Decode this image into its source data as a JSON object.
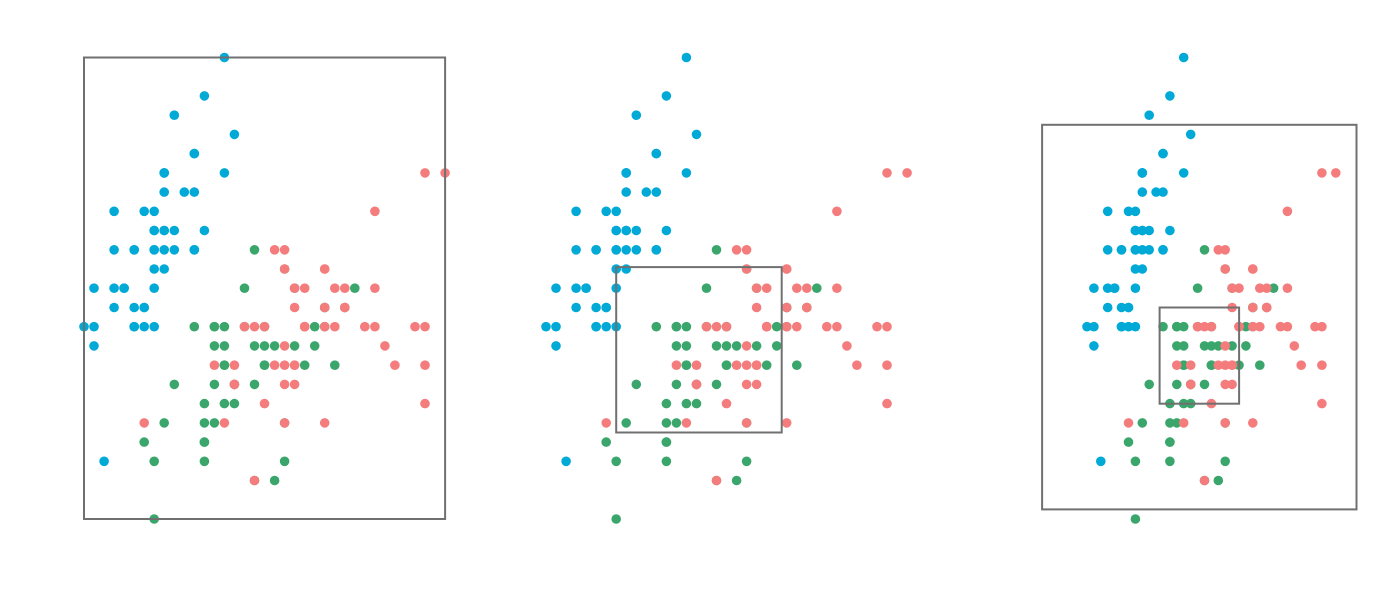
{
  "chart_data": {
    "type": "scatter",
    "title": "",
    "xlabel": "",
    "ylabel": "",
    "xlim": [
      4.0,
      8.1
    ],
    "ylim": [
      1.8,
      4.5
    ],
    "grid": false,
    "legend": "none",
    "colors": {
      "setosa": "#00a9d6",
      "versicolor": "#3aa66c",
      "virginica": "#f47c7c",
      "box": "#707070"
    },
    "series": [
      {
        "key": "setosa",
        "color": "#00a9d6",
        "points": [
          [
            5.1,
            3.5
          ],
          [
            4.9,
            3.0
          ],
          [
            4.7,
            3.2
          ],
          [
            4.6,
            3.1
          ],
          [
            5.0,
            3.6
          ],
          [
            5.4,
            3.9
          ],
          [
            4.6,
            3.4
          ],
          [
            5.0,
            3.4
          ],
          [
            4.4,
            2.9
          ],
          [
            4.9,
            3.1
          ],
          [
            5.4,
            3.7
          ],
          [
            4.8,
            3.4
          ],
          [
            4.8,
            3.0
          ],
          [
            4.3,
            3.0
          ],
          [
            5.8,
            4.0
          ],
          [
            5.7,
            4.4
          ],
          [
            5.4,
            3.9
          ],
          [
            5.1,
            3.5
          ],
          [
            5.7,
            3.8
          ],
          [
            5.1,
            3.8
          ],
          [
            5.4,
            3.4
          ],
          [
            5.1,
            3.7
          ],
          [
            4.6,
            3.6
          ],
          [
            5.1,
            3.3
          ],
          [
            4.8,
            3.4
          ],
          [
            5.0,
            3.0
          ],
          [
            5.0,
            3.4
          ],
          [
            5.2,
            3.5
          ],
          [
            5.2,
            3.4
          ],
          [
            4.7,
            3.2
          ],
          [
            4.8,
            3.1
          ],
          [
            5.4,
            3.4
          ],
          [
            5.2,
            4.1
          ],
          [
            5.5,
            4.2
          ],
          [
            4.9,
            3.1
          ],
          [
            5.0,
            3.2
          ],
          [
            5.5,
            3.5
          ],
          [
            4.9,
            3.6
          ],
          [
            4.4,
            3.0
          ],
          [
            5.1,
            3.4
          ],
          [
            5.0,
            3.5
          ],
          [
            4.5,
            2.3
          ],
          [
            4.4,
            3.2
          ],
          [
            5.0,
            3.5
          ],
          [
            5.1,
            3.8
          ],
          [
            4.8,
            3.0
          ],
          [
            5.1,
            3.8
          ],
          [
            4.6,
            3.2
          ],
          [
            5.3,
            3.7
          ],
          [
            5.0,
            3.3
          ]
        ]
      },
      {
        "key": "versicolor",
        "color": "#3aa66c",
        "points": [
          [
            7.0,
            3.2
          ],
          [
            6.4,
            3.2
          ],
          [
            6.9,
            3.1
          ],
          [
            5.5,
            2.3
          ],
          [
            6.5,
            2.8
          ],
          [
            5.7,
            2.8
          ],
          [
            6.3,
            3.3
          ],
          [
            4.9,
            2.4
          ],
          [
            6.6,
            2.9
          ],
          [
            5.2,
            2.7
          ],
          [
            5.0,
            2.0
          ],
          [
            5.9,
            3.0
          ],
          [
            6.0,
            2.2
          ],
          [
            6.1,
            2.9
          ],
          [
            5.6,
            2.9
          ],
          [
            6.7,
            3.1
          ],
          [
            5.6,
            3.0
          ],
          [
            5.8,
            2.7
          ],
          [
            6.2,
            2.2
          ],
          [
            5.6,
            2.5
          ],
          [
            5.9,
            3.2
          ],
          [
            6.1,
            2.8
          ],
          [
            6.3,
            2.5
          ],
          [
            6.1,
            2.8
          ],
          [
            6.4,
            2.9
          ],
          [
            6.6,
            3.0
          ],
          [
            6.8,
            2.8
          ],
          [
            6.7,
            3.0
          ],
          [
            6.0,
            2.9
          ],
          [
            5.7,
            2.6
          ],
          [
            5.5,
            2.4
          ],
          [
            5.5,
            2.4
          ],
          [
            5.8,
            2.7
          ],
          [
            6.0,
            2.7
          ],
          [
            5.4,
            3.0
          ],
          [
            6.0,
            3.4
          ],
          [
            6.7,
            3.1
          ],
          [
            6.3,
            2.3
          ],
          [
            5.6,
            3.0
          ],
          [
            5.5,
            2.5
          ],
          [
            5.5,
            2.6
          ],
          [
            6.1,
            3.0
          ],
          [
            5.8,
            2.6
          ],
          [
            5.0,
            2.3
          ],
          [
            5.6,
            2.7
          ],
          [
            5.7,
            3.0
          ],
          [
            5.7,
            2.9
          ],
          [
            6.2,
            2.9
          ],
          [
            5.1,
            2.5
          ],
          [
            5.7,
            2.8
          ]
        ]
      },
      {
        "key": "virginica",
        "color": "#f47c7c",
        "points": [
          [
            6.3,
            3.3
          ],
          [
            5.8,
            2.7
          ],
          [
            7.1,
            3.0
          ],
          [
            6.3,
            2.9
          ],
          [
            6.5,
            3.0
          ],
          [
            7.6,
            3.0
          ],
          [
            4.9,
            2.5
          ],
          [
            7.3,
            2.9
          ],
          [
            6.7,
            2.5
          ],
          [
            7.2,
            3.6
          ],
          [
            6.5,
            3.2
          ],
          [
            6.4,
            2.7
          ],
          [
            6.8,
            3.0
          ],
          [
            5.7,
            2.5
          ],
          [
            5.8,
            2.8
          ],
          [
            6.4,
            3.2
          ],
          [
            6.5,
            3.0
          ],
          [
            7.7,
            3.8
          ],
          [
            7.7,
            2.6
          ],
          [
            6.0,
            2.2
          ],
          [
            6.9,
            3.2
          ],
          [
            5.6,
            2.8
          ],
          [
            7.7,
            2.8
          ],
          [
            6.3,
            2.7
          ],
          [
            6.7,
            3.3
          ],
          [
            7.2,
            3.2
          ],
          [
            6.2,
            2.8
          ],
          [
            6.1,
            3.0
          ],
          [
            6.4,
            2.8
          ],
          [
            7.2,
            3.0
          ],
          [
            7.4,
            2.8
          ],
          [
            7.9,
            3.8
          ],
          [
            6.4,
            2.8
          ],
          [
            6.3,
            2.8
          ],
          [
            6.1,
            2.6
          ],
          [
            7.7,
            3.0
          ],
          [
            6.3,
            3.4
          ],
          [
            6.4,
            3.1
          ],
          [
            6.0,
            3.0
          ],
          [
            6.9,
            3.1
          ],
          [
            6.7,
            3.1
          ],
          [
            6.9,
            3.1
          ],
          [
            5.8,
            2.7
          ],
          [
            6.8,
            3.2
          ],
          [
            6.7,
            3.3
          ],
          [
            6.7,
            3.0
          ],
          [
            6.3,
            2.5
          ],
          [
            6.5,
            3.0
          ],
          [
            6.2,
            3.4
          ],
          [
            5.9,
            3.0
          ]
        ]
      }
    ],
    "panels": [
      {
        "key": "panel-1",
        "boxes": [
          {
            "xmin": 4.3,
            "xmax": 7.9,
            "ymin": 2.0,
            "ymax": 4.4
          }
        ]
      },
      {
        "key": "panel-2",
        "boxes": [
          {
            "xmin": 5.0,
            "xmax": 6.65,
            "ymin": 2.45,
            "ymax": 3.31
          }
        ]
      },
      {
        "key": "panel-3",
        "boxes": [
          {
            "xmin": 3.65,
            "xmax": 8.2,
            "ymin": 2.05,
            "ymax": 4.05
          },
          {
            "xmin": 5.35,
            "xmax": 6.5,
            "ymin": 2.6,
            "ymax": 3.1
          }
        ]
      }
    ]
  }
}
